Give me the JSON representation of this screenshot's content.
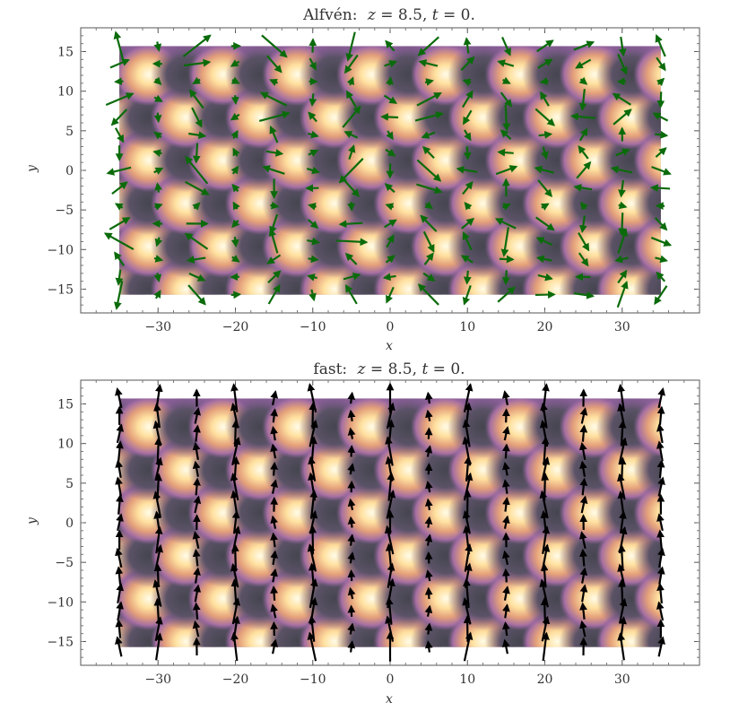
{
  "chart_data": [
    {
      "type": "heatmap",
      "title": "Alfvén:  z = 8.5,  t = 0.",
      "title_prefix": "Alfvén:",
      "title_z": "8.5",
      "title_t": "0.",
      "xlabel": "x",
      "ylabel": "y",
      "xlim": [
        -40,
        40
      ],
      "ylim": [
        -18,
        18
      ],
      "field_xlim": [
        -35,
        35
      ],
      "field_ylim": [
        -15.7,
        15.7
      ],
      "x_ticks": [
        -30,
        -20,
        -10,
        0,
        10,
        20,
        30
      ],
      "x_tick_labels": [
        "−30",
        "−20",
        "−10",
        "0",
        "10",
        "20",
        "30"
      ],
      "y_ticks": [
        15,
        10,
        5,
        0,
        -5,
        -10,
        -15
      ],
      "y_tick_labels": [
        "15",
        "10",
        "5",
        "0",
        "−5",
        "−10",
        "−15"
      ],
      "overlay": "vector field (arrows)",
      "arrow_color": "#0b6b0b",
      "colormap": [
        "#4a4a58",
        "#8a5f98",
        "#c888a8",
        "#f0b070",
        "#fff0c0"
      ]
    },
    {
      "type": "heatmap",
      "title": "fast:  z = 8.5,  t = 0.",
      "title_prefix": "fast:",
      "title_z": "8.5",
      "title_t": "0.",
      "xlabel": "x",
      "ylabel": "y",
      "xlim": [
        -40,
        40
      ],
      "ylim": [
        -18,
        18
      ],
      "field_xlim": [
        -35,
        35
      ],
      "field_ylim": [
        -15.7,
        15.7
      ],
      "x_ticks": [
        -30,
        -20,
        -10,
        0,
        10,
        20,
        30
      ],
      "x_tick_labels": [
        "−30",
        "−20",
        "−10",
        "0",
        "10",
        "20",
        "30"
      ],
      "y_ticks": [
        15,
        10,
        5,
        0,
        -5,
        -10,
        -15
      ],
      "y_tick_labels": [
        "15",
        "10",
        "5",
        "0",
        "−5",
        "−10",
        "−15"
      ],
      "overlay": "vector field (arrows)",
      "arrow_color": "#000000",
      "colormap": [
        "#4a4a58",
        "#8a5f98",
        "#c888a8",
        "#f0b070",
        "#fff0c0"
      ]
    }
  ]
}
